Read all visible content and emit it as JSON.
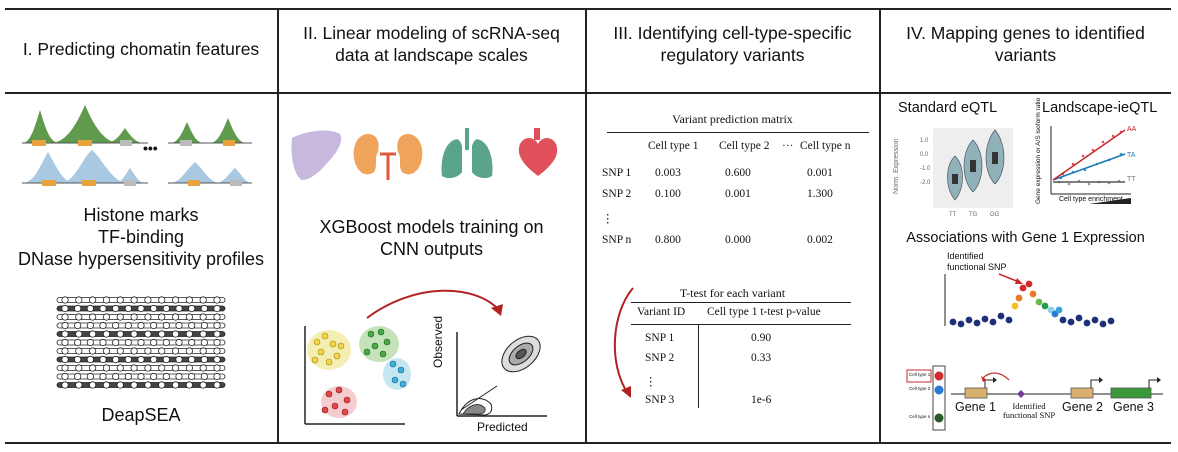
{
  "panels": {
    "p1": {
      "title": "I. Predicting chomatin features",
      "dots": "•••",
      "features": [
        "Histone marks",
        "TF-binding",
        "DNase hypersensitivity profiles"
      ],
      "model_name": "DeapSEA"
    },
    "p2": {
      "title_lines": [
        "II. Linear modeling of scRNA-seq",
        "data at landscape scales"
      ],
      "caption_lines": [
        "XGBoost models training on",
        "CNN outputs"
      ],
      "plot_ylabel": "Observed",
      "plot_xlabel": "Predicted",
      "organ_icons": [
        "liver-icon",
        "kidney-icon",
        "lung-icon",
        "heart-icon"
      ]
    },
    "p3": {
      "title_lines": [
        "III. Identifying cell-type-specific",
        "regulatory variants"
      ],
      "matrix_title": "Variant prediction matrix",
      "matrix_headers": [
        "Cell type 1",
        "Cell type 2",
        "···",
        "Cell type n"
      ],
      "matrix_rows": [
        {
          "label": "SNP 1",
          "v1": "0.003",
          "v2": "0.600",
          "vn": "0.001"
        },
        {
          "label": "SNP 2",
          "v1": "0.100",
          "v2": "0.001",
          "vn": "1.300"
        },
        {
          "label": "⋮",
          "v1": "",
          "v2": "",
          "vn": ""
        },
        {
          "label": "SNP n",
          "v1": "0.800",
          "v2": "0.000",
          "vn": "0.002"
        }
      ],
      "ttest_title": "T-test for each variant",
      "ttest_headers": [
        "Variant ID",
        "Cell type 1 t-test p-value"
      ],
      "ttest_rows": [
        {
          "id": "SNP 1",
          "p": "0.90"
        },
        {
          "id": "SNP 2",
          "p": "0.33"
        },
        {
          "id": "⋮",
          "p": ""
        },
        {
          "id": "SNP 3",
          "p": "1e-6"
        }
      ]
    },
    "p4": {
      "title_lines": [
        "IV. Mapping genes to identified",
        "variants"
      ],
      "eqtl_title": "Standard eQTL",
      "ieqtl_title": "Landscape-ieQTL",
      "eqtl_ylabel": "Norm. Expression",
      "eqtl_yticks": [
        "1.0",
        "0.0",
        "-1.0",
        "-2.0"
      ],
      "eqtl_xticks": [
        "TT",
        "TG",
        "GG"
      ],
      "ieqtl_ylabel": "Gene expression or A/S isoform ratio",
      "ieqtl_xlabel": "Cell type enrichment",
      "ieqtl_series": [
        "AA",
        "TA",
        "TT"
      ],
      "assoc_title": "Associations with Gene 1 Expression",
      "identified_snp": "Identified functional SNP",
      "cell_type_labels": [
        "Cell type 1",
        "Cell type 2",
        "Cell type n"
      ],
      "genes": [
        "Gene 1",
        "Gene 2",
        "Gene 3"
      ],
      "identified_snp_bottom": "Identified functional SNP"
    }
  }
}
